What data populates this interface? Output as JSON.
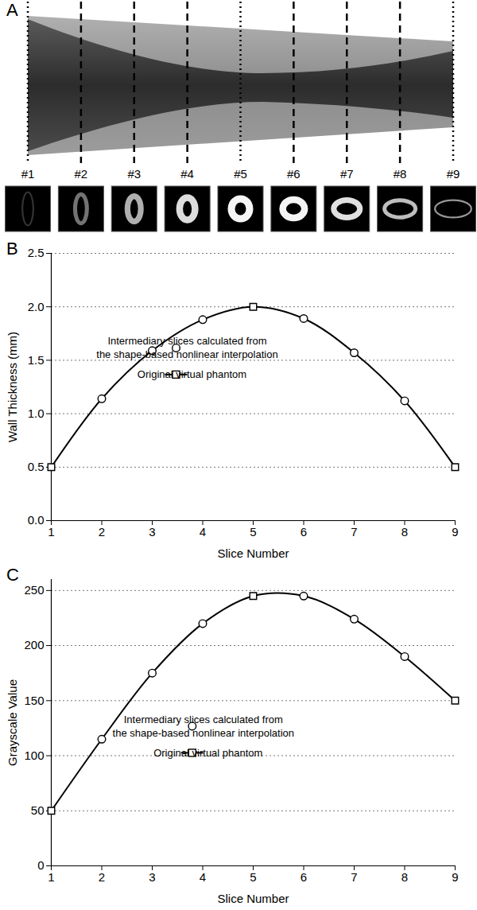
{
  "diagram": {
    "title": "A",
    "slice_labels": [
      "#1",
      "#2",
      "#3",
      "#4",
      "#5",
      "#6",
      "#7",
      "#8",
      "#9"
    ]
  },
  "chart_data": [
    {
      "type": "line",
      "title": "B",
      "xlabel": "Slice Number",
      "ylabel": "Wall Thickness (mm)",
      "x": [
        1,
        2,
        3,
        4,
        5,
        6,
        7,
        8,
        9
      ],
      "xlim": [
        1,
        9
      ],
      "xticks": [
        1,
        2,
        3,
        4,
        5,
        6,
        7,
        8,
        9
      ],
      "ylim": [
        0,
        2.5
      ],
      "yticks": [
        {
          "value": 0,
          "label": "0.0"
        },
        0.5,
        {
          "value": 1,
          "label": "1.0"
        },
        1.5,
        {
          "value": 2,
          "label": "2.0"
        },
        2.5
      ],
      "grid": true,
      "series": [
        {
          "name": "Intermediary slices calculated from\nthe shape-based nonlinear interpolation",
          "type": "scatter",
          "marker": "circle",
          "color": "#000000",
          "values": [
            null,
            1.14,
            1.59,
            1.88,
            null,
            1.89,
            1.57,
            1.12,
            null
          ]
        },
        {
          "name": "Original virtual phantom",
          "type": "line",
          "marker": "square",
          "line_style": "solid",
          "color": "#000000",
          "values": [
            0.5,
            null,
            null,
            null,
            2.0,
            null,
            null,
            null,
            0.5
          ]
        }
      ]
    },
    {
      "type": "line",
      "title": "C",
      "xlabel": "Slice Number",
      "ylabel": "Grayscale Value",
      "x": [
        1,
        2,
        3,
        4,
        5,
        6,
        7,
        8,
        9
      ],
      "xlim": [
        1,
        9
      ],
      "xticks": [
        1,
        2,
        3,
        4,
        5,
        6,
        7,
        8,
        9
      ],
      "ylim": [
        0,
        260
      ],
      "yticks": [
        0,
        50,
        100,
        150,
        200,
        250
      ],
      "grid": true,
      "series": [
        {
          "name": "Intermediary slices calculated from\nthe shape-based nonlinear interpolation",
          "type": "scatter",
          "marker": "circle",
          "color": "#000000",
          "values": [
            null,
            115,
            175,
            220,
            null,
            245,
            224,
            190,
            null
          ]
        },
        {
          "name": "Original virtual phantom",
          "type": "line",
          "marker": "square",
          "line_style": "solid",
          "color": "#000000",
          "values": [
            50,
            null,
            null,
            null,
            245,
            null,
            null,
            null,
            150
          ]
        }
      ]
    }
  ]
}
